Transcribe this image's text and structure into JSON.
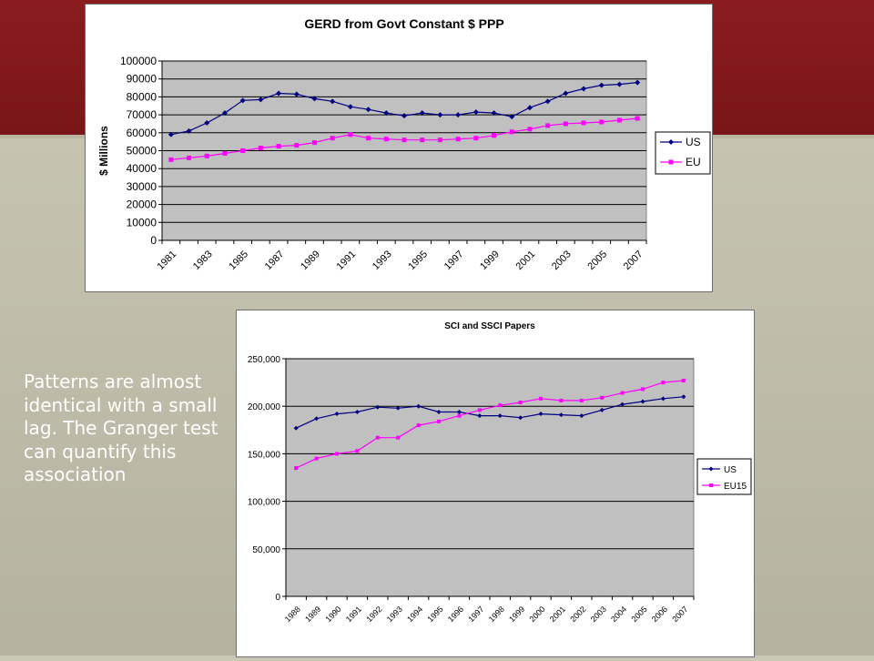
{
  "caption": "Patterns are almost identical with a small lag.  The Granger test can quantify this association",
  "chart_data": [
    {
      "type": "line",
      "title": "GERD from Govt Constant $ PPP",
      "ylabel": "$ Millions",
      "xlabel": "",
      "ylim": [
        0,
        100000
      ],
      "yticks": [
        0,
        10000,
        20000,
        30000,
        40000,
        50000,
        60000,
        70000,
        80000,
        90000,
        100000
      ],
      "ytick_labels": [
        "0",
        "10000",
        "20000",
        "30000",
        "40000",
        "50000",
        "60000",
        "70000",
        "80000",
        "90000",
        "100000"
      ],
      "x": [
        1981,
        1982,
        1983,
        1984,
        1985,
        1986,
        1987,
        1988,
        1989,
        1990,
        1991,
        1992,
        1993,
        1994,
        1995,
        1996,
        1997,
        1998,
        1999,
        2000,
        2001,
        2002,
        2003,
        2004,
        2005,
        2006,
        2007
      ],
      "xtick_labels": [
        "1981",
        "1983",
        "1985",
        "1987",
        "1989",
        "1991",
        "1993",
        "1995",
        "1997",
        "1999",
        "2001",
        "2003",
        "2005",
        "2007"
      ],
      "grid": true,
      "plot_background": "#c0c0c0",
      "legend_position": "right",
      "series": [
        {
          "name": "US",
          "color": "#000080",
          "marker": "diamond",
          "values": [
            59000,
            61000,
            65500,
            71000,
            78000,
            78500,
            82000,
            81500,
            79000,
            77500,
            74500,
            73000,
            71000,
            69500,
            71000,
            70000,
            70000,
            71500,
            71000,
            69000,
            74000,
            77500,
            82000,
            84500,
            86500,
            87000,
            88000
          ]
        },
        {
          "name": "EU",
          "color": "#ff00ff",
          "marker": "square",
          "values": [
            45000,
            46000,
            47000,
            48500,
            50000,
            51500,
            52500,
            53000,
            54500,
            57000,
            59000,
            57000,
            56500,
            56000,
            56000,
            56000,
            56500,
            57000,
            58500,
            60500,
            62000,
            64000,
            65000,
            65500,
            66000,
            67000,
            68000
          ]
        }
      ]
    },
    {
      "type": "line",
      "title": "SCI and SSCI Papers",
      "xlabel": "",
      "ylabel": "",
      "ylim": [
        0,
        250000
      ],
      "yticks": [
        0,
        50000,
        100000,
        150000,
        200000,
        250000
      ],
      "ytick_labels": [
        "0",
        "50,000",
        "100,000",
        "150,000",
        "200,000",
        "250,000"
      ],
      "x": [
        1988,
        1989,
        1990,
        1991,
        1992,
        1993,
        1994,
        1995,
        1996,
        1997,
        1998,
        1999,
        2000,
        2001,
        2002,
        2003,
        2004,
        2005,
        2006,
        2007
      ],
      "xtick_labels": [
        "1988",
        "1989",
        "1990",
        "1991",
        "1992",
        "1993",
        "1994",
        "1995",
        "1996",
        "1997",
        "1998",
        "1999",
        "2000",
        "2001",
        "2002",
        "2003",
        "2004",
        "2005",
        "2006",
        "2007"
      ],
      "grid": true,
      "plot_background": "#c0c0c0",
      "legend_position": "right",
      "series": [
        {
          "name": "US",
          "color": "#000080",
          "marker": "diamond",
          "values": [
            177000,
            187000,
            192000,
            194000,
            199000,
            198000,
            200000,
            194000,
            194000,
            190000,
            190000,
            188000,
            192000,
            191000,
            190000,
            196000,
            202000,
            205000,
            208000,
            210000
          ]
        },
        {
          "name": "EU15",
          "color": "#ff00ff",
          "marker": "square",
          "values": [
            135000,
            145000,
            150000,
            153000,
            167000,
            167000,
            180000,
            184000,
            190000,
            196000,
            201000,
            204000,
            208000,
            206000,
            206000,
            209000,
            214000,
            218000,
            225000,
            227000
          ]
        }
      ]
    }
  ]
}
